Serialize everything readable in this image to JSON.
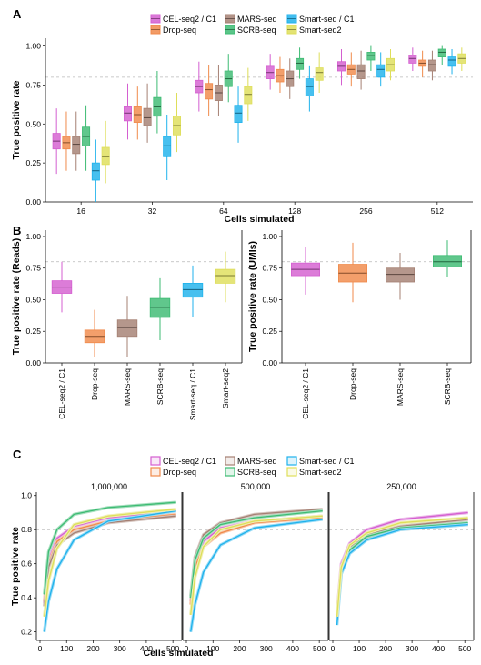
{
  "colors": {
    "CEL-seq2 / C1": "#d45fd0",
    "Drop-seq": "#f08a4b",
    "MARS-seq": "#a58073",
    "SCRB-seq": "#3dbb73",
    "Smart-seq / C1": "#1fb2ec",
    "Smart-seq2": "#dede5a"
  },
  "legend_order": [
    "CEL-seq2 / C1",
    "MARS-seq",
    "Smart-seq / C1",
    "Drop-seq",
    "SCRB-seq",
    "Smart-seq2"
  ],
  "chart_data": [
    {
      "id": "A",
      "panel_label": "A",
      "type": "boxplot",
      "xlabel": "Cells simulated",
      "ylabel": "True positive rate",
      "ylim": [
        0,
        1.05
      ],
      "yticks": [
        "0.00",
        "0.25",
        "0.50",
        "0.75",
        "1.00"
      ],
      "reference_line": 0.8,
      "categories": [
        "16",
        "32",
        "64",
        "128",
        "256",
        "512"
      ],
      "series_order": [
        "CEL-seq2 / C1",
        "Drop-seq",
        "MARS-seq",
        "SCRB-seq",
        "Smart-seq / C1",
        "Smart-seq2"
      ],
      "boxes": {
        "CEL-seq2 / C1": [
          [
            0.18,
            0.34,
            0.39,
            0.44,
            0.6
          ],
          [
            0.4,
            0.52,
            0.57,
            0.61,
            0.76
          ],
          [
            0.58,
            0.7,
            0.74,
            0.78,
            0.9
          ],
          [
            0.72,
            0.79,
            0.83,
            0.87,
            0.95
          ],
          [
            0.75,
            0.84,
            0.87,
            0.9,
            0.98
          ],
          [
            0.84,
            0.89,
            0.92,
            0.94,
            0.99
          ]
        ],
        "Drop-seq": [
          [
            0.2,
            0.34,
            0.38,
            0.42,
            0.58
          ],
          [
            0.4,
            0.51,
            0.56,
            0.61,
            0.74
          ],
          [
            0.55,
            0.66,
            0.72,
            0.76,
            0.88
          ],
          [
            0.7,
            0.77,
            0.81,
            0.85,
            0.93
          ],
          [
            0.74,
            0.82,
            0.85,
            0.88,
            0.96
          ],
          [
            0.8,
            0.87,
            0.89,
            0.91,
            0.97
          ]
        ],
        "MARS-seq": [
          [
            0.2,
            0.31,
            0.37,
            0.42,
            0.58
          ],
          [
            0.38,
            0.49,
            0.54,
            0.6,
            0.76
          ],
          [
            0.55,
            0.65,
            0.7,
            0.75,
            0.88
          ],
          [
            0.66,
            0.74,
            0.79,
            0.84,
            0.92
          ],
          [
            0.72,
            0.79,
            0.84,
            0.88,
            0.97
          ],
          [
            0.78,
            0.84,
            0.88,
            0.91,
            0.97
          ]
        ],
        "SCRB-seq": [
          [
            0.2,
            0.36,
            0.42,
            0.48,
            0.62
          ],
          [
            0.44,
            0.55,
            0.61,
            0.67,
            0.84
          ],
          [
            0.64,
            0.74,
            0.79,
            0.84,
            0.95
          ],
          [
            0.79,
            0.85,
            0.89,
            0.92,
            0.99
          ],
          [
            0.84,
            0.91,
            0.94,
            0.96,
            1.0
          ],
          [
            0.88,
            0.93,
            0.96,
            0.98,
            1.0
          ]
        ],
        "Smart-seq / C1": [
          [
            0.0,
            0.14,
            0.2,
            0.25,
            0.4
          ],
          [
            0.14,
            0.29,
            0.36,
            0.42,
            0.56
          ],
          [
            0.38,
            0.51,
            0.57,
            0.62,
            0.74
          ],
          [
            0.58,
            0.68,
            0.74,
            0.79,
            0.87
          ],
          [
            0.74,
            0.8,
            0.85,
            0.88,
            0.96
          ],
          [
            0.82,
            0.87,
            0.91,
            0.93,
            0.98
          ]
        ],
        "Smart-seq2": [
          [
            0.12,
            0.24,
            0.29,
            0.35,
            0.52
          ],
          [
            0.32,
            0.43,
            0.49,
            0.55,
            0.7
          ],
          [
            0.52,
            0.63,
            0.69,
            0.74,
            0.86
          ],
          [
            0.7,
            0.78,
            0.83,
            0.86,
            0.96
          ],
          [
            0.78,
            0.84,
            0.88,
            0.92,
            0.98
          ],
          [
            0.84,
            0.89,
            0.92,
            0.95,
            0.99
          ]
        ]
      }
    },
    {
      "id": "B1",
      "panel_label": "B",
      "type": "boxplot",
      "ylabel": "True positive rate (Reads)",
      "ylim": [
        0,
        1.05
      ],
      "yticks": [
        "0.00",
        "0.25",
        "0.50",
        "0.75",
        "1.00"
      ],
      "reference_line": 0.8,
      "categories": [
        "CEL-seq2 / C1",
        "Drop-seq",
        "MARS-seq",
        "SCRB-seq",
        "Smart-seq / C1",
        "Smart-seq2"
      ],
      "boxes": {
        "CEL-seq2 / C1": [
          0.4,
          0.55,
          0.6,
          0.65,
          0.8
        ],
        "Drop-seq": [
          0.05,
          0.16,
          0.21,
          0.26,
          0.42
        ],
        "MARS-seq": [
          0.05,
          0.21,
          0.28,
          0.34,
          0.53
        ],
        "SCRB-seq": [
          0.18,
          0.36,
          0.44,
          0.51,
          0.67
        ],
        "Smart-seq / C1": [
          0.36,
          0.52,
          0.58,
          0.63,
          0.77
        ],
        "Smart-seq2": [
          0.48,
          0.63,
          0.69,
          0.74,
          0.88
        ]
      }
    },
    {
      "id": "B2",
      "panel_label": "",
      "type": "boxplot",
      "ylabel": "True positive rate (UMIs)",
      "ylim": [
        0,
        1.05
      ],
      "yticks": [
        "0.00",
        "0.25",
        "0.50",
        "0.75",
        "1.00"
      ],
      "reference_line": 0.8,
      "categories": [
        "CEL-seq2 / C1",
        "Drop-seq",
        "MARS-seq",
        "SCRB-seq"
      ],
      "boxes": {
        "CEL-seq2 / C1": [
          0.54,
          0.69,
          0.74,
          0.79,
          0.92
        ],
        "Drop-seq": [
          0.48,
          0.64,
          0.71,
          0.78,
          0.95
        ],
        "MARS-seq": [
          0.5,
          0.64,
          0.7,
          0.75,
          0.87
        ],
        "SCRB-seq": [
          0.68,
          0.76,
          0.8,
          0.85,
          0.97
        ]
      }
    },
    {
      "id": "C",
      "panel_label": "C",
      "type": "line",
      "xlabel": "Cells simulated",
      "ylabel": "True positive rate",
      "ylim": [
        0.15,
        1.02
      ],
      "yticks": [
        "0.2",
        "0.4",
        "0.6",
        "0.8",
        "1.0"
      ],
      "xticks": [
        "0",
        "100",
        "200",
        "300",
        "400",
        "500"
      ],
      "reference_line": 0.8,
      "x": [
        16,
        32,
        64,
        128,
        256,
        512
      ],
      "facets": [
        {
          "title": "1,000,000",
          "series": [
            {
              "name": "CEL-seq2 / C1",
              "values": [
                0.37,
                0.62,
                0.75,
                0.82,
                0.87,
                0.91
              ]
            },
            {
              "name": "Drop-seq",
              "values": [
                0.38,
                0.6,
                0.73,
                0.8,
                0.85,
                0.89
              ]
            },
            {
              "name": "MARS-seq",
              "values": [
                0.35,
                0.58,
                0.71,
                0.78,
                0.84,
                0.88
              ]
            },
            {
              "name": "SCRB-seq",
              "values": [
                0.42,
                0.67,
                0.8,
                0.89,
                0.93,
                0.96
              ]
            },
            {
              "name": "Smart-seq / C1",
              "values": [
                0.2,
                0.38,
                0.57,
                0.74,
                0.85,
                0.91
              ]
            },
            {
              "name": "Smart-seq2",
              "values": [
                0.29,
                0.5,
                0.69,
                0.83,
                0.88,
                0.92
              ]
            }
          ]
        },
        {
          "title": "500,000",
          "series": [
            {
              "name": "CEL-seq2 / C1",
              "values": [
                0.38,
                0.6,
                0.73,
                0.81,
                0.85,
                0.88
              ]
            },
            {
              "name": "Drop-seq",
              "values": [
                0.36,
                0.58,
                0.7,
                0.78,
                0.84,
                0.87
              ]
            },
            {
              "name": "MARS-seq",
              "values": [
                0.41,
                0.64,
                0.77,
                0.84,
                0.89,
                0.92
              ]
            },
            {
              "name": "SCRB-seq",
              "values": [
                0.4,
                0.62,
                0.75,
                0.83,
                0.87,
                0.91
              ]
            },
            {
              "name": "Smart-seq / C1",
              "values": [
                0.2,
                0.36,
                0.55,
                0.71,
                0.81,
                0.86
              ]
            },
            {
              "name": "Smart-seq2",
              "values": [
                0.3,
                0.52,
                0.7,
                0.8,
                0.85,
                0.88
              ]
            }
          ]
        },
        {
          "title": "250,000",
          "series": [
            {
              "name": "CEL-seq2 / C1",
              "values": [
                0.3,
                0.6,
                0.72,
                0.8,
                0.86,
                0.9
              ]
            },
            {
              "name": "Drop-seq",
              "values": [
                0.27,
                0.55,
                0.68,
                0.75,
                0.8,
                0.83
              ]
            },
            {
              "name": "MARS-seq",
              "values": [
                0.28,
                0.57,
                0.7,
                0.77,
                0.82,
                0.86
              ]
            },
            {
              "name": "SCRB-seq",
              "values": [
                0.26,
                0.56,
                0.68,
                0.76,
                0.81,
                0.84
              ]
            },
            {
              "name": "Smart-seq / C1",
              "values": [
                0.24,
                0.54,
                0.66,
                0.74,
                0.8,
                0.83
              ]
            },
            {
              "name": "Smart-seq2",
              "values": [
                0.29,
                0.58,
                0.71,
                0.78,
                0.84,
                0.87
              ]
            }
          ]
        }
      ]
    }
  ]
}
